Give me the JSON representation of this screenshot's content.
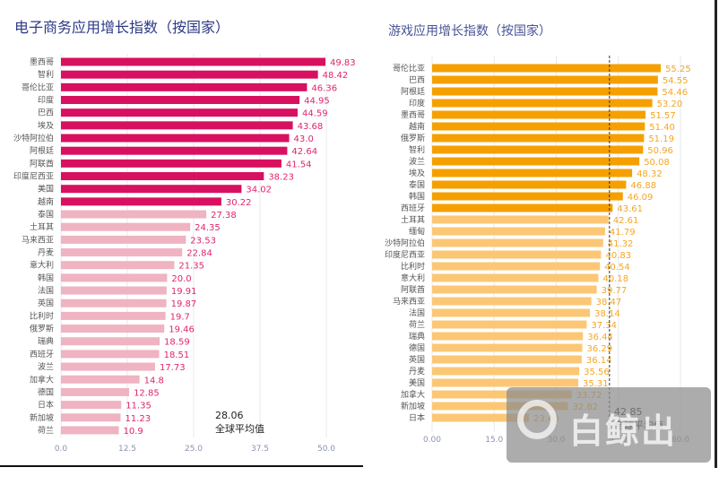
{
  "chart_data": [
    {
      "type": "bar",
      "orientation": "horizontal",
      "title": "电子商务应用增长指数（按国家）",
      "categories": [
        "墨西哥",
        "智利",
        "哥伦比亚",
        "印度",
        "巴西",
        "埃及",
        "沙特阿拉伯",
        "阿根廷",
        "阿联酋",
        "印度尼西亚",
        "美国",
        "越南",
        "泰国",
        "土耳其",
        "马来西亚",
        "丹麦",
        "意大利",
        "韩国",
        "法国",
        "英国",
        "比利时",
        "俄罗斯",
        "瑞典",
        "西班牙",
        "波兰",
        "加拿大",
        "德国",
        "日本",
        "新加坡",
        "荷兰"
      ],
      "values": [
        49.83,
        48.42,
        46.36,
        44.95,
        44.59,
        43.68,
        43.0,
        42.64,
        41.54,
        38.23,
        34.02,
        30.22,
        27.38,
        24.35,
        23.53,
        22.84,
        21.35,
        20.0,
        19.91,
        19.87,
        19.7,
        19.46,
        18.59,
        18.51,
        17.73,
        14.8,
        12.85,
        11.35,
        11.23,
        10.9
      ],
      "value_labels": [
        "49.83",
        "48.42",
        "46.36",
        "44.95",
        "44.59",
        "43.68",
        "43.0",
        "42.64",
        "41.54",
        "38.23",
        "34.02",
        "30.22",
        "27.38",
        "24.35",
        "23.53",
        "22.84",
        "21.35",
        "20.0",
        "19.91",
        "19.87",
        "19.7",
        "19.46",
        "18.59",
        "18.51",
        "17.73",
        "14.8",
        "12.85",
        "11.35",
        "11.23",
        "10.9"
      ],
      "xlim": [
        0,
        50
      ],
      "xticks": [
        "0.0",
        "12.5",
        "25.0",
        "37.5",
        "50.0"
      ],
      "average": {
        "value": "28.06",
        "label": "全球平均值"
      },
      "colors": {
        "above": "#d81060",
        "below": "#efb3c1"
      }
    },
    {
      "type": "bar",
      "orientation": "horizontal",
      "title": "游戏应用增长指数（按国家）",
      "categories": [
        "哥伦比亚",
        "巴西",
        "阿根廷",
        "印度",
        "墨西哥",
        "越南",
        "俄罗斯",
        "智利",
        "波兰",
        "埃及",
        "泰国",
        "韩国",
        "西班牙",
        "土耳其",
        "缅甸",
        "沙特阿拉伯",
        "印度尼西亚",
        "比利时",
        "意大利",
        "阿联酋",
        "马来西亚",
        "法国",
        "荷兰",
        "瑞典",
        "德国",
        "英国",
        "丹麦",
        "美国",
        "加拿大",
        "新加坡",
        "日本"
      ],
      "values": [
        55.25,
        54.55,
        54.46,
        53.2,
        51.57,
        51.4,
        51.19,
        50.96,
        50.08,
        48.32,
        46.88,
        46.09,
        43.61,
        42.61,
        41.79,
        41.32,
        40.83,
        40.54,
        40.18,
        39.77,
        38.47,
        38.14,
        37.34,
        36.44,
        36.29,
        36.14,
        35.56,
        35.31,
        33.72,
        32.82,
        23.4
      ],
      "value_labels": [
        "55.25",
        "54.55",
        "54.46",
        "53.20",
        "51.57",
        "51.40",
        "51.19",
        "50.96",
        "50.08",
        "48.32",
        "46.88",
        "46.09",
        "43.61",
        "42.61",
        "41.79",
        "41.32",
        "40.83",
        "40.54",
        "40.18",
        "39.77",
        "38.47",
        "38.14",
        "37.34",
        "36.44",
        "36.29",
        "36.14",
        "35.56",
        "35.31",
        "33.72",
        "32.82",
        "23.40"
      ],
      "xlim": [
        0,
        60
      ],
      "xticks": [
        "0.00",
        "15.0",
        "30.0",
        "45.0",
        "60.0"
      ],
      "average": {
        "value": "42.85",
        "label": "全球平均值"
      },
      "colors": {
        "above": "#f5a000",
        "below": "#fcc774"
      }
    }
  ],
  "watermark": "白鲸出海"
}
